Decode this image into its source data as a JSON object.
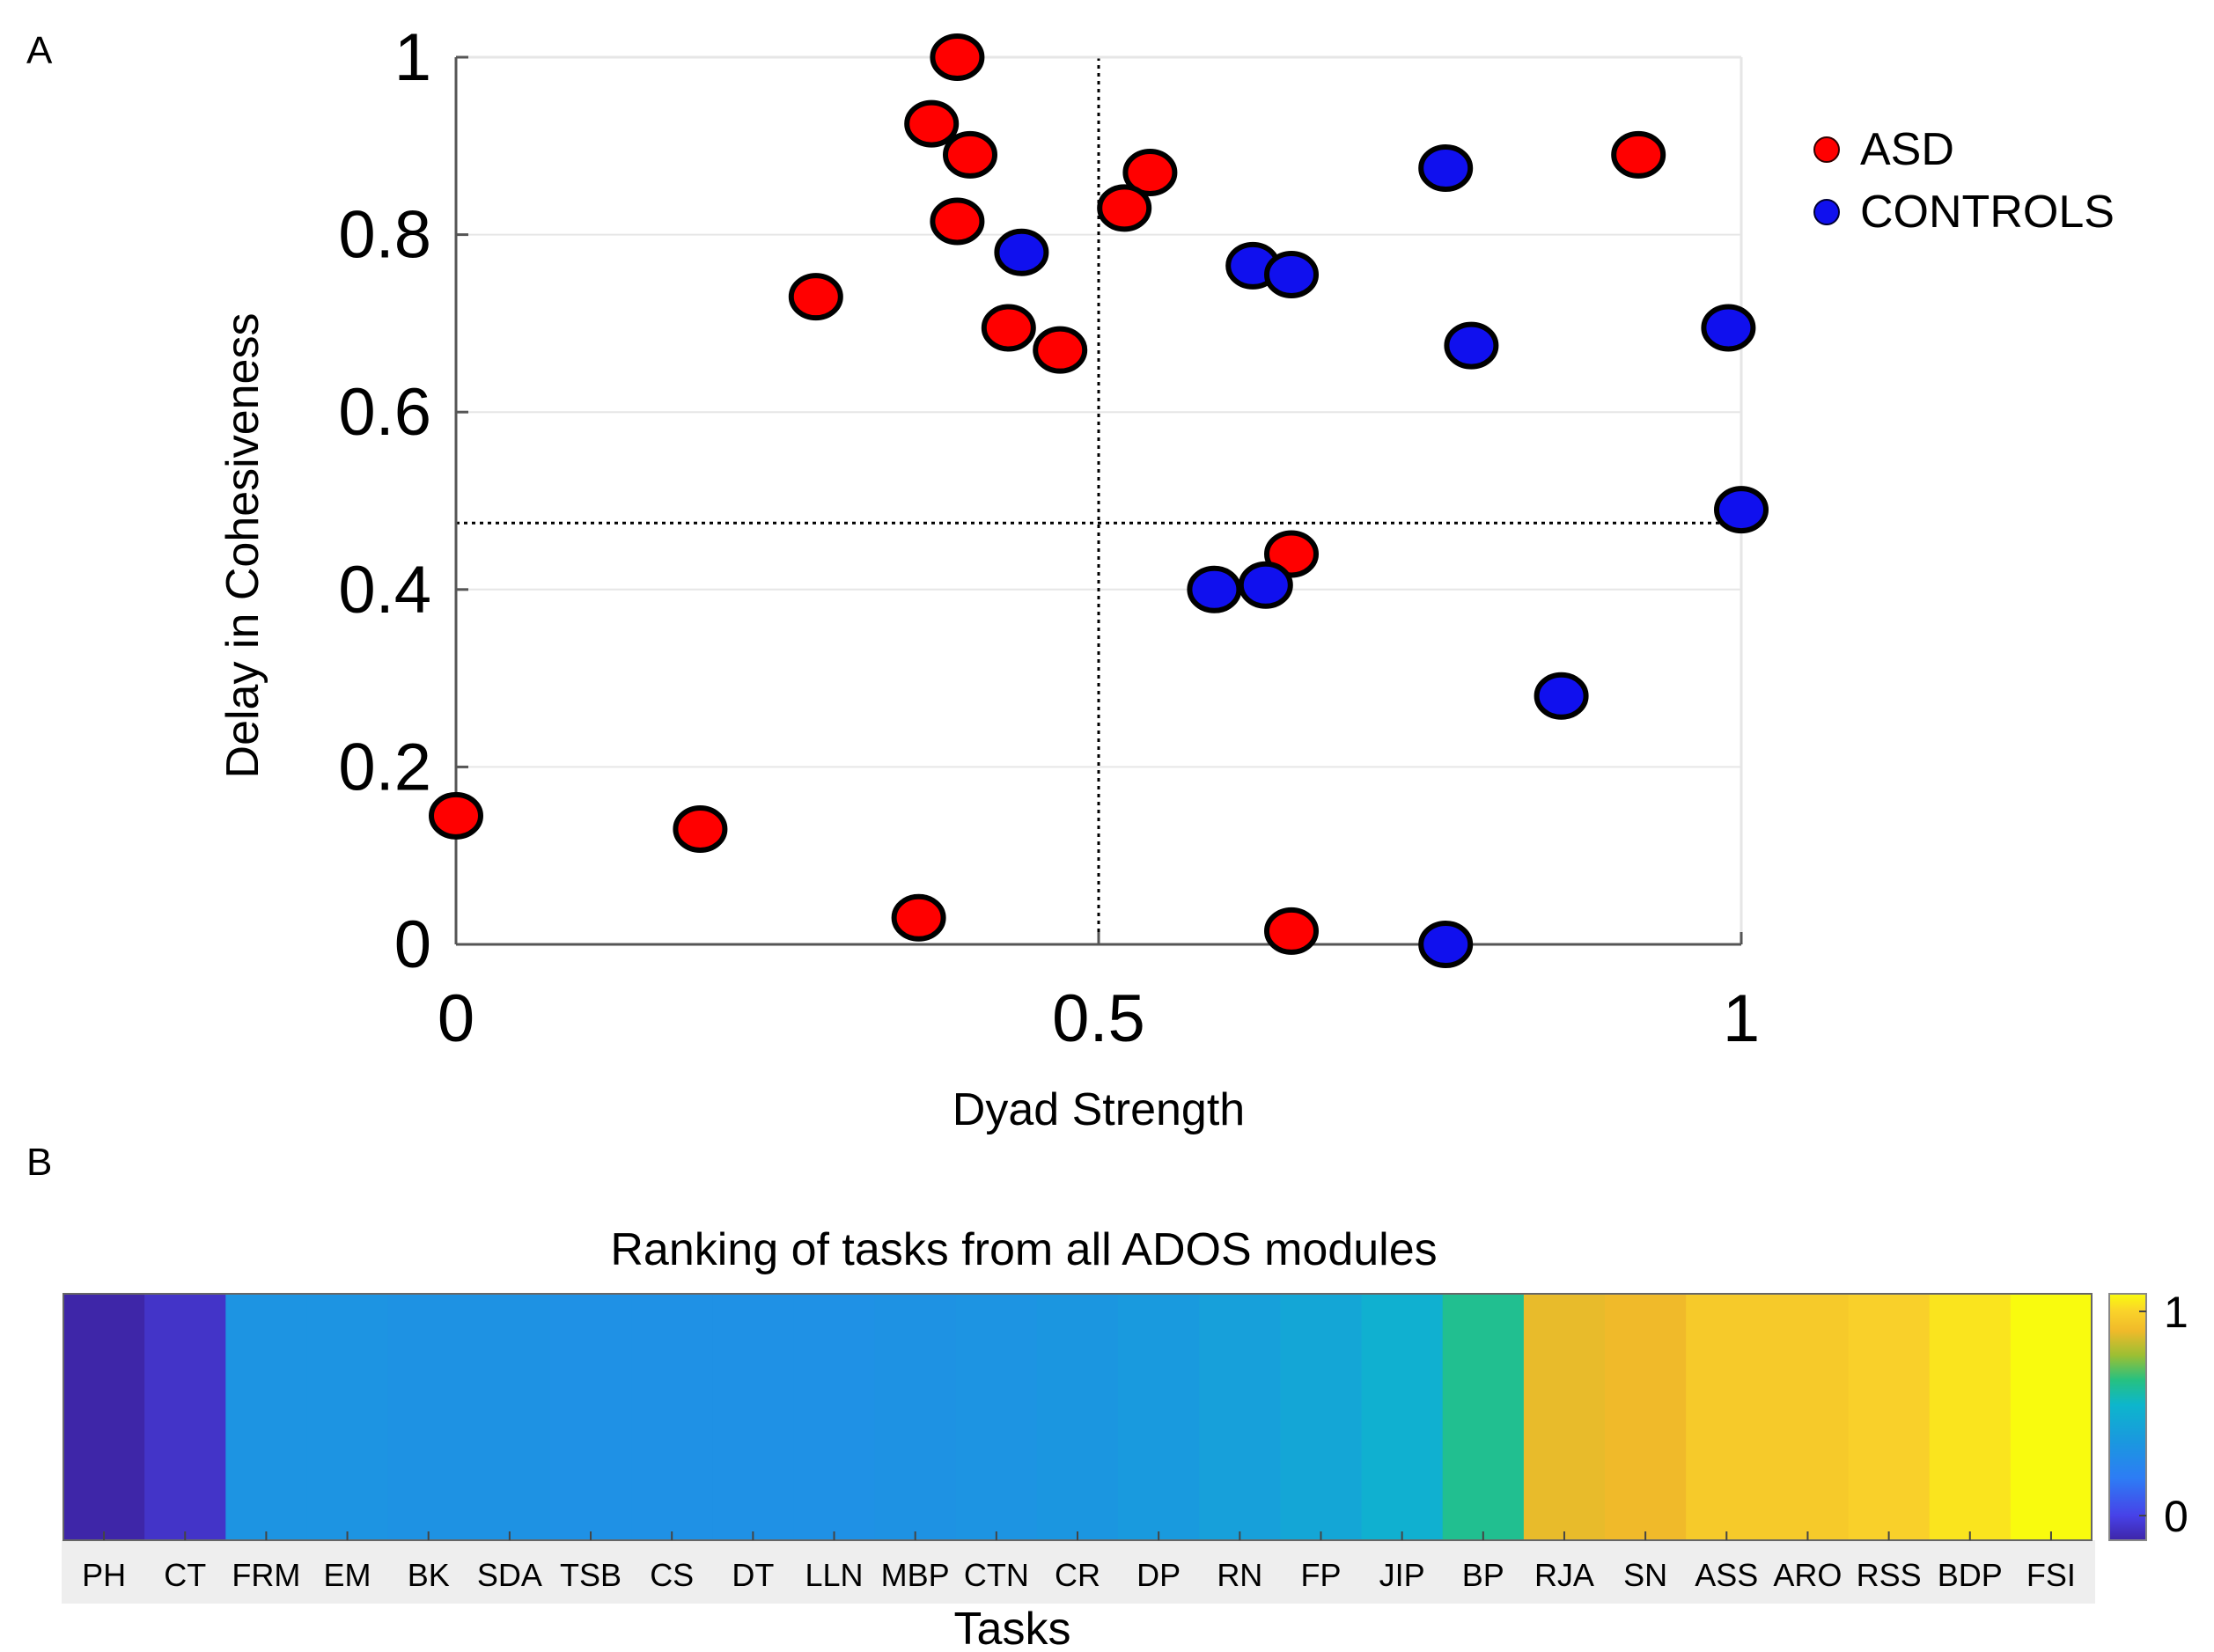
{
  "chart_data": [
    {
      "type": "scatter",
      "panel_label": "A",
      "title": "",
      "xlabel": "Dyad Strength",
      "ylabel": "Delay in Cohesiveness",
      "xlim": [
        0,
        1
      ],
      "ylim": [
        0,
        1
      ],
      "x_ticks": [
        0,
        0.5,
        1
      ],
      "x_tick_labels": [
        "0",
        "0.5",
        "1"
      ],
      "y_ticks": [
        0,
        0.2,
        0.4,
        0.6,
        0.8,
        1
      ],
      "y_tick_labels": [
        "0",
        "0.2",
        "0.4",
        "0.6",
        "0.8",
        "1"
      ],
      "grid": "horizontal",
      "legend_position": "right",
      "reference_lines": {
        "x": 0.5,
        "y": 0.475
      },
      "series": [
        {
          "name": "ASD",
          "color": "#ff0000",
          "points": [
            {
              "x": 0.39,
              "y": 1.0
            },
            {
              "x": 0.37,
              "y": 0.925
            },
            {
              "x": 0.4,
              "y": 0.89
            },
            {
              "x": 0.39,
              "y": 0.815
            },
            {
              "x": 0.54,
              "y": 0.87
            },
            {
              "x": 0.52,
              "y": 0.83
            },
            {
              "x": 0.92,
              "y": 0.89
            },
            {
              "x": 0.28,
              "y": 0.73
            },
            {
              "x": 0.43,
              "y": 0.695
            },
            {
              "x": 0.47,
              "y": 0.67
            },
            {
              "x": 0.65,
              "y": 0.44
            },
            {
              "x": 0.0,
              "y": 0.145
            },
            {
              "x": 0.19,
              "y": 0.13
            },
            {
              "x": 0.36,
              "y": 0.03
            },
            {
              "x": 0.65,
              "y": 0.015
            }
          ]
        },
        {
          "name": "CONTROLS",
          "color": "#1010ee",
          "points": [
            {
              "x": 0.77,
              "y": 0.875
            },
            {
              "x": 0.44,
              "y": 0.78
            },
            {
              "x": 0.62,
              "y": 0.765
            },
            {
              "x": 0.65,
              "y": 0.755
            },
            {
              "x": 0.79,
              "y": 0.675
            },
            {
              "x": 0.99,
              "y": 0.695
            },
            {
              "x": 1.0,
              "y": 0.49
            },
            {
              "x": 0.59,
              "y": 0.4
            },
            {
              "x": 0.63,
              "y": 0.405
            },
            {
              "x": 0.86,
              "y": 0.28
            },
            {
              "x": 0.77,
              "y": 0.0
            }
          ]
        }
      ]
    },
    {
      "type": "heatmap",
      "panel_label": "B",
      "title": "Ranking of tasks from all ADOS modules",
      "xlabel": "Tasks",
      "ylabel": "",
      "categories": [
        "PH",
        "CT",
        "FRM",
        "EM",
        "BK",
        "SDA",
        "TSB",
        "CS",
        "DT",
        "LLN",
        "MBP",
        "CTN",
        "CR",
        "DP",
        "RN",
        "FP",
        "JIP",
        "BP",
        "RJA",
        "SN",
        "ASS",
        "ARO",
        "RSS",
        "BDP",
        "FSI"
      ],
      "values": [
        0.0,
        0.05,
        0.38,
        0.38,
        0.37,
        0.37,
        0.36,
        0.36,
        0.36,
        0.36,
        0.37,
        0.38,
        0.39,
        0.41,
        0.44,
        0.47,
        0.52,
        0.63,
        0.84,
        0.85,
        0.9,
        0.9,
        0.92,
        0.96,
        1.0
      ],
      "colorbar": {
        "min": 0,
        "max": 1,
        "tick_labels": [
          "0",
          "1"
        ],
        "colormap": "parula"
      }
    }
  ]
}
